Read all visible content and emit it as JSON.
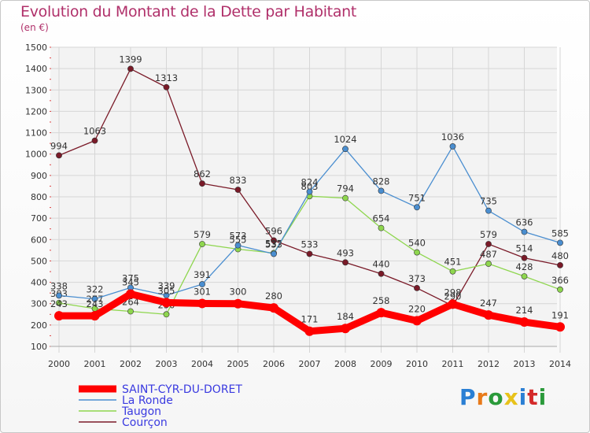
{
  "title": "Evolution du Montant de la Dette par Habitant",
  "subtitle": "(en €)",
  "logo": {
    "text": "Proxiti",
    "colors": [
      "#2a7fd4",
      "#e87a1a",
      "#2a9a3a",
      "#e8c21a",
      "#2a7fd4",
      "#d42a2a",
      "#2a9a3a"
    ]
  },
  "chart_data": {
    "type": "line",
    "x": [
      "2000",
      "2001",
      "2002",
      "2003",
      "2004",
      "2005",
      "2006",
      "2007",
      "2008",
      "2009",
      "2010",
      "2011",
      "2012",
      "2013",
      "2014"
    ],
    "ylim": [
      100,
      1500
    ],
    "yticks": [
      100,
      200,
      300,
      400,
      500,
      600,
      700,
      800,
      900,
      1000,
      1100,
      1200,
      1300,
      1400,
      1500
    ],
    "grid": true,
    "legend_position": "bottom-left",
    "series": [
      {
        "name": "Courçon",
        "color": "#7a1a28",
        "values": [
          994,
          1063,
          1399,
          1313,
          862,
          833,
          596,
          533,
          493,
          440,
          373,
          290,
          579,
          514,
          480
        ]
      },
      {
        "name": "Taugon",
        "color": "#8ed64e",
        "values": [
          303,
          277,
          264,
          250,
          579,
          555,
          537,
          803,
          794,
          654,
          540,
          451,
          487,
          428,
          366
        ]
      },
      {
        "name": "La Ronde",
        "color": "#4a8ed0",
        "values": [
          338,
          322,
          375,
          339,
          391,
          573,
          533,
          824,
          1024,
          828,
          751,
          1036,
          735,
          636,
          585
        ]
      },
      {
        "name": "SAINT-CYR-DU-DORET",
        "color": "#ff0000",
        "values": [
          243,
          243,
          345,
          305,
          301,
          300,
          280,
          171,
          184,
          258,
          220,
          298,
          247,
          214,
          191
        ]
      }
    ]
  }
}
